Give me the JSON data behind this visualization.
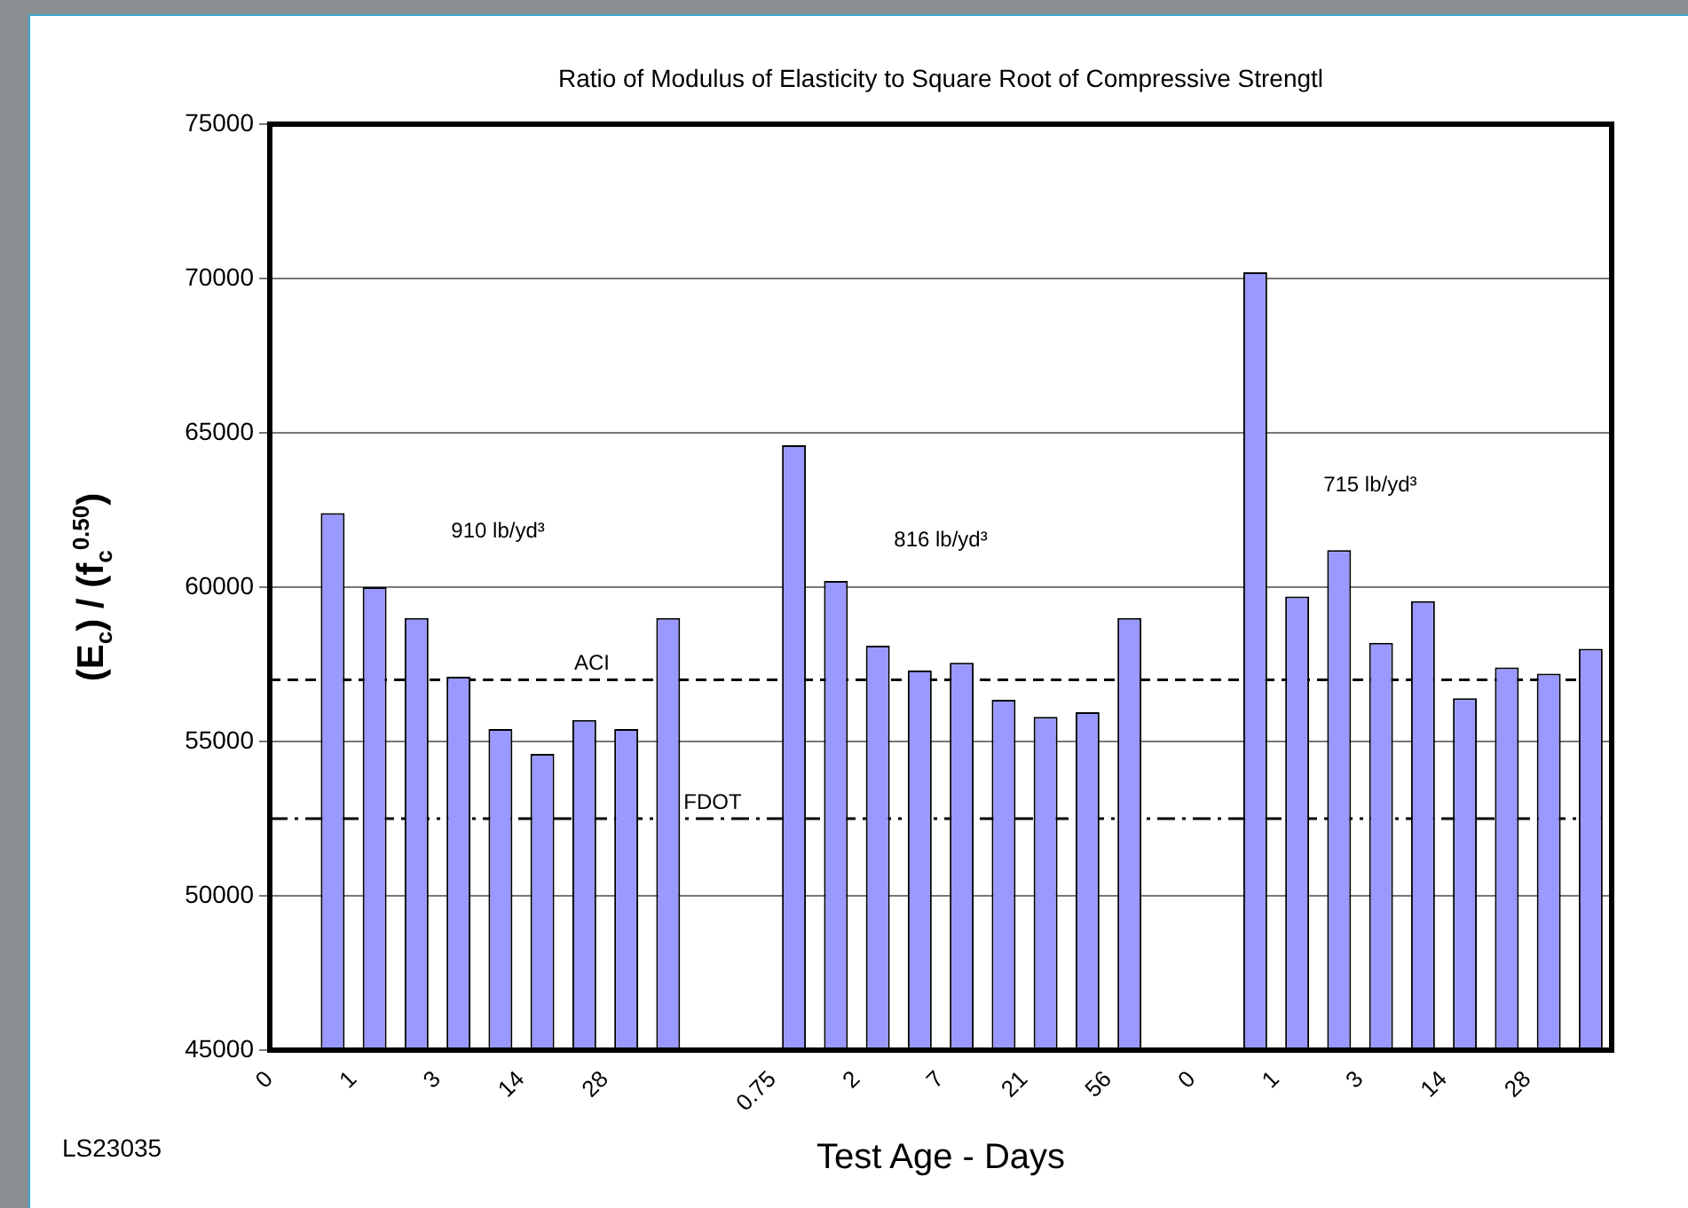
{
  "chart_data": {
    "type": "bar",
    "title": "Ratio of Modulus of Elasticity to Square Root of Compressive Strengtl",
    "xlabel": "Test Age - Days",
    "ylabel": "(E$_{c}$) / (f$_{c}$$^{0.50}$)",
    "categories": [
      "0",
      null,
      "1",
      null,
      "3",
      null,
      "14",
      null,
      "28",
      null,
      null,
      null,
      "0.75",
      null,
      "2",
      null,
      "7",
      null,
      "21",
      null,
      "56",
      null,
      "0",
      null,
      "1",
      null,
      "3",
      null,
      "14",
      null,
      "28",
      null
    ],
    "values": [
      null,
      62400,
      60000,
      59000,
      57100,
      55400,
      54600,
      55700,
      55400,
      59000,
      null,
      null,
      64600,
      60200,
      58100,
      57300,
      57550,
      56350,
      55800,
      55950,
      59000,
      null,
      null,
      70200,
      59700,
      61200,
      58200,
      59550,
      56400,
      57400,
      57200,
      58000
    ],
    "color": "#9999ff",
    "ylim": [
      45000,
      75000
    ],
    "yticks": [
      45000,
      50000,
      55000,
      60000,
      65000,
      70000,
      75000
    ],
    "grid": "y",
    "ref_lines": [
      {
        "axis": "y",
        "value": 57000,
        "label": "ACI",
        "line_style": "dashed",
        "color": "#000000"
      },
      {
        "axis": "y",
        "value": 52500,
        "label": "FDOT",
        "line_style": "dashdot",
        "color": "#000000"
      }
    ],
    "annotations": [
      "910 lb/yd³",
      "816 lb/yd³",
      "715 lb/yd³",
      "LS23035"
    ]
  }
}
